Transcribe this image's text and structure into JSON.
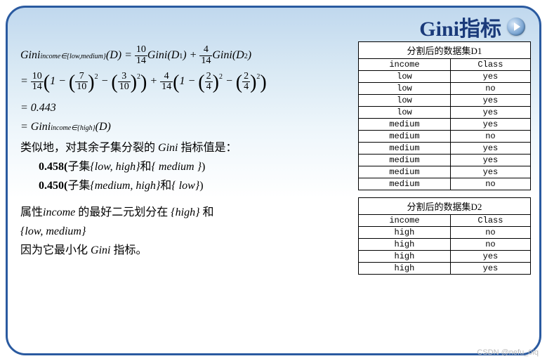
{
  "title": "Gini指标",
  "equations": {
    "line1_a": "Gini",
    "line1_sub": "income∈{low,medium}",
    "line1_b": "(D) = ",
    "f1n": "10",
    "f1d": "14",
    "line1_c": "Gini(D",
    "d1": "1",
    "line1_d": ") + ",
    "f2n": "4",
    "f2d": "14",
    "line1_e": "Gini(D",
    "d2": "2",
    "line1_f": ")",
    "line2_eq": "= ",
    "f3n": "10",
    "f3d": "14",
    "inner_1": "1 − ",
    "p1n": "7",
    "p1d": "10",
    "minus": " − ",
    "p2n": "3",
    "p2d": "10",
    "plus": " + ",
    "f4n": "4",
    "f4d": "14",
    "p3n": "2",
    "p3d": "4",
    "p4n": "2",
    "p4d": "4",
    "sqtxt": "2",
    "line3": "= 0.443",
    "line4_a": "= Gini",
    "line4_sub": "income∈{high}",
    "line4_b": "(D)"
  },
  "body": {
    "similar": "类似地，对其余子集分裂的 ",
    "gini_it": "Gini",
    "similar_tail": " 指标值是：",
    "r1_val": "0.458(",
    "r1_a": "子集",
    "r1_set": "{low, high}",
    "r1_and": "和",
    "r1_set2": "{ medium }",
    "r1_end": ")",
    "r2_val": "0.450(",
    "r2_a": "子集",
    "r2_set": "{medium, high}",
    "r2_and": "和",
    "r2_set2": "{ low}",
    "r2_end": ")",
    "best_a": "属性",
    "best_income": "income",
    "best_b": " 的最好二元划分在 ",
    "best_set1": "{high}",
    "best_and": " 和",
    "best_set2": "{low, medium}",
    "because": "因为它最小化 ",
    "because_tail": " 指标。"
  },
  "tableD1": {
    "caption": "分割后的数据集D1",
    "headers": [
      "income",
      "Class"
    ],
    "rows": [
      [
        "low",
        "yes"
      ],
      [
        "low",
        "no"
      ],
      [
        "low",
        "yes"
      ],
      [
        "low",
        "yes"
      ],
      [
        "medium",
        "yes"
      ],
      [
        "medium",
        "no"
      ],
      [
        "medium",
        "yes"
      ],
      [
        "medium",
        "yes"
      ],
      [
        "medium",
        "yes"
      ],
      [
        "medium",
        "no"
      ]
    ]
  },
  "tableD2": {
    "caption": "分割后的数据集D2",
    "headers": [
      "income",
      "Class"
    ],
    "rows": [
      [
        "high",
        "no"
      ],
      [
        "high",
        "no"
      ],
      [
        "high",
        "yes"
      ],
      [
        "high",
        "yes"
      ]
    ]
  },
  "watermark": "CSDN @nefu_0iq",
  "styling": {
    "title_color": "#1a3a7a",
    "title_fontsize": 30,
    "bg_gradient": [
      "#c0d8ee",
      "#d9e9f4",
      "#eef6fb",
      "#ffffff"
    ],
    "border_color": "#2a5aa0",
    "border_radius": 28,
    "body_fontsize": 16,
    "table_fontsize": 12,
    "table_font": "Courier New",
    "watermark_color": "#bbbbbb"
  }
}
